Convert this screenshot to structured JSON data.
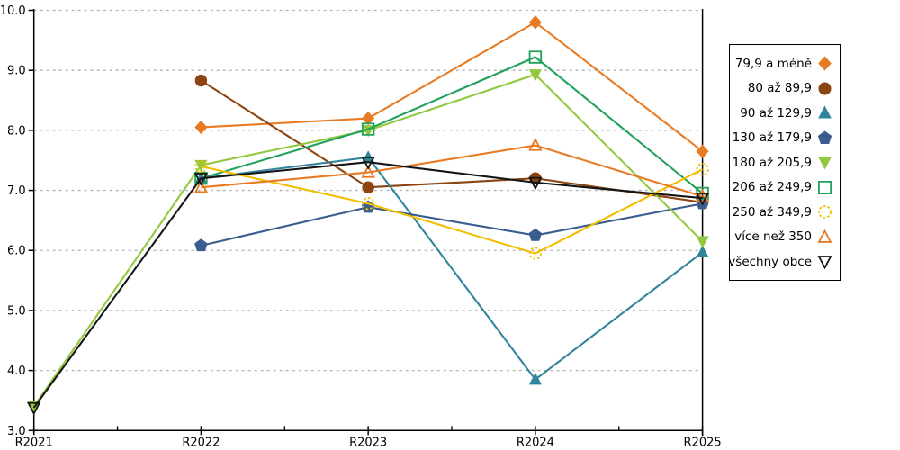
{
  "chart_data": {
    "type": "line",
    "title": "",
    "xlabel": "",
    "ylabel": "",
    "x_labels": [
      "R2021",
      "R2022",
      "R2023",
      "R2024",
      "R2025"
    ],
    "y_tick_labels": [
      "10.0",
      "9.0",
      "8.0",
      "7.0",
      "6.0",
      "5.0",
      "4.0",
      "3.0"
    ],
    "ylim": [
      3.0,
      10.0
    ],
    "grid": "horizontal-dashed",
    "grid_color": "#b3b3b3",
    "axis_color": "#000000",
    "legend_position": "right",
    "series": [
      {
        "name": "79,9 a méně",
        "color": "#E87A22",
        "marker": "diamond",
        "marker_style": "filled",
        "values": [
          null,
          8.05,
          8.2,
          9.8,
          7.65
        ]
      },
      {
        "name": "80 až 89,9",
        "color": "#8C4411",
        "marker": "circle",
        "marker_style": "filled",
        "values": [
          null,
          8.83,
          7.05,
          7.2,
          6.8
        ]
      },
      {
        "name": "90 až 129,9",
        "color": "#31859B",
        "marker": "triangle-up",
        "marker_style": "filled",
        "values": [
          null,
          7.2,
          7.55,
          3.85,
          5.97
        ]
      },
      {
        "name": "130 až 179,9",
        "color": "#3A5C8F",
        "marker": "pentagon",
        "marker_style": "filled",
        "values": [
          null,
          6.08,
          6.72,
          6.25,
          6.78
        ]
      },
      {
        "name": "180 až 205,9",
        "color": "#92C83E",
        "marker": "triangle-down",
        "marker_style": "filled",
        "values": [
          3.4,
          7.42,
          8.0,
          8.93,
          6.15
        ]
      },
      {
        "name": "206 až 249,9",
        "color": "#21A15C",
        "marker": "square",
        "marker_style": "open",
        "values": [
          null,
          7.2,
          8.02,
          9.22,
          6.95
        ]
      },
      {
        "name": "250 až 349,9",
        "color": "#F2BE00",
        "marker": "circle",
        "marker_style": "open-dashed",
        "values": [
          null,
          7.4,
          6.78,
          5.95,
          7.35
        ]
      },
      {
        "name": "více než 350",
        "color": "#E87A22",
        "marker": "triangle-up",
        "marker_style": "open",
        "values": [
          null,
          7.05,
          7.3,
          7.75,
          6.9
        ]
      },
      {
        "name": "všechny obce",
        "color": "#151515",
        "marker": "triangle-down",
        "marker_style": "open",
        "values": [
          3.38,
          7.2,
          7.47,
          7.13,
          6.87
        ]
      }
    ]
  }
}
